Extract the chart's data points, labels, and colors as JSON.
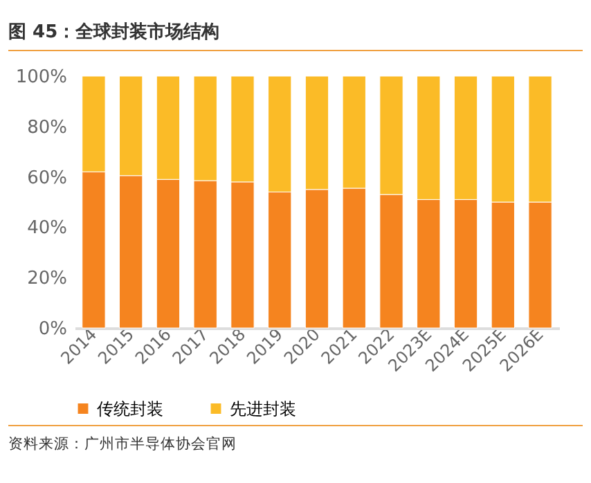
{
  "chart_data": {
    "type": "bar",
    "title": "图 45：全球封装市场结构",
    "stacked": true,
    "categories": [
      "2014",
      "2015",
      "2016",
      "2017",
      "2018",
      "2019",
      "2020",
      "2021",
      "2022",
      "2023E",
      "2024E",
      "2025E",
      "2026E"
    ],
    "series": [
      {
        "name": "传统封装",
        "color": "#f5841f",
        "values": [
          62,
          60.5,
          59,
          58.5,
          58,
          54,
          55,
          55.5,
          53,
          51,
          51,
          50,
          50
        ]
      },
      {
        "name": "先进封装",
        "color": "#fbbb27",
        "values": [
          38,
          39.5,
          41,
          41.5,
          42,
          46,
          45,
          44.5,
          47,
          49,
          49,
          50,
          50
        ]
      }
    ],
    "ylim": [
      0,
      100
    ],
    "yticks": [
      {
        "value": 0,
        "label": "0%"
      },
      {
        "value": 20,
        "label": "20%"
      },
      {
        "value": 40,
        "label": "40%"
      },
      {
        "value": 60,
        "label": "60%"
      },
      {
        "value": 80,
        "label": "80%"
      },
      {
        "value": 100,
        "label": "100%"
      }
    ],
    "grid": false,
    "legend": "bottom",
    "annotations": [
      "资料来源：广州市半导体协会官网"
    ]
  }
}
